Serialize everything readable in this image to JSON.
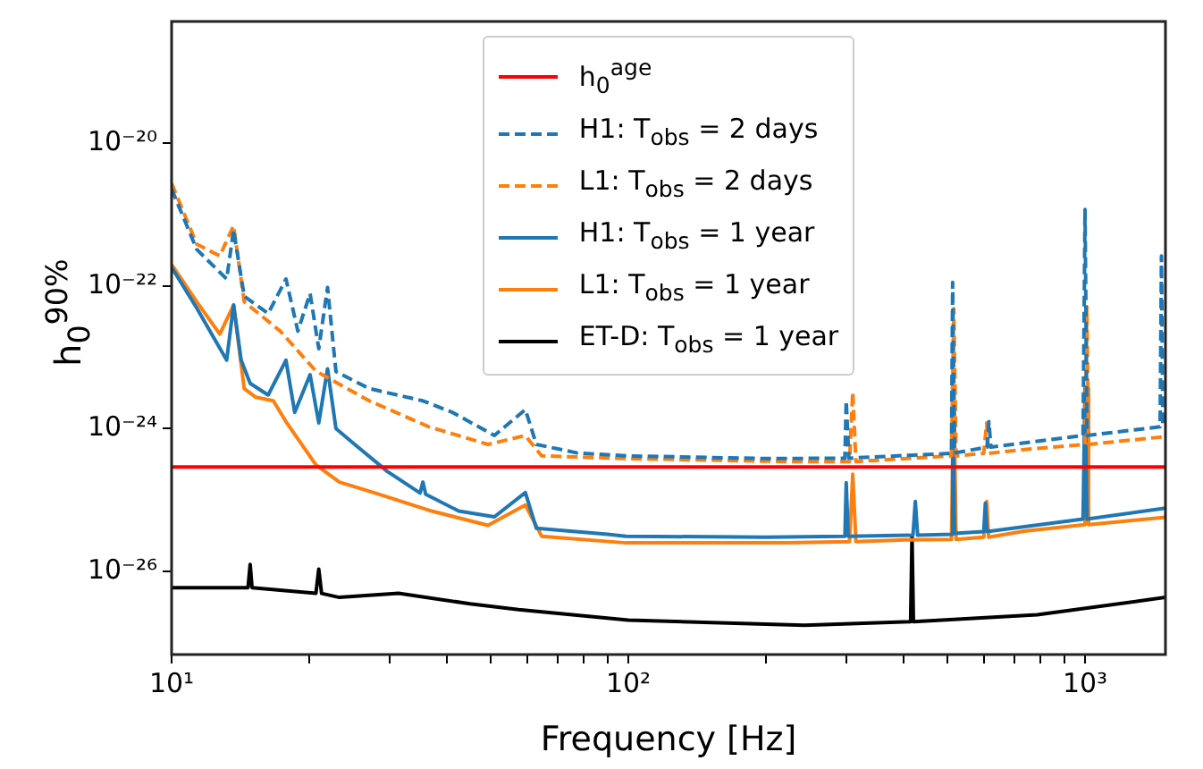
{
  "chart_data": {
    "type": "line",
    "xlabel": "Frequency [Hz]",
    "ylabel": "h$_{0}$$^{90%}$",
    "log": "xy",
    "legend": "top",
    "line_style": "solid",
    "xlim": [
      10,
      1500
    ],
    "ylim": [
      6.8e-28,
      5.1e-19
    ],
    "xticks": [
      {
        "value": 10,
        "label": "10¹"
      },
      {
        "value": 20,
        "label": null
      },
      {
        "value": 30,
        "label": null
      },
      {
        "value": 40,
        "label": null
      },
      {
        "value": 50,
        "label": null
      },
      {
        "value": 60,
        "label": null
      },
      {
        "value": 70,
        "label": null
      },
      {
        "value": 80,
        "label": null
      },
      {
        "value": 90,
        "label": null
      },
      {
        "value": 100,
        "label": "10²"
      },
      {
        "value": 200,
        "label": null
      },
      {
        "value": 300,
        "label": null
      },
      {
        "value": 400,
        "label": null
      },
      {
        "value": 500,
        "label": null
      },
      {
        "value": 600,
        "label": null
      },
      {
        "value": 700,
        "label": null
      },
      {
        "value": 800,
        "label": null
      },
      {
        "value": 900,
        "label": null
      },
      {
        "value": 1000,
        "label": "10³"
      }
    ],
    "yticks": [
      {
        "value": 1e-26,
        "label": "10⁻²⁶"
      },
      {
        "value": 1e-24,
        "label": "10⁻²⁴"
      },
      {
        "value": 1e-22,
        "label": "10⁻²²"
      },
      {
        "value": 1e-20,
        "label": "10⁻²⁰"
      }
    ],
    "series": [
      {
        "name": "h$_{0}$$^{age}$",
        "color": "#ff0000",
        "x": [
          10,
          1500
        ],
        "values": [
          2.9e-25,
          2.9e-25
        ]
      },
      {
        "name": "H1: T$_{obs}$ = 2 days",
        "color": "#1f77b4",
        "line_style": "dashed",
        "x": [
          10,
          11.35,
          13.2,
          13.67,
          14.42,
          16.27,
          17.8,
          18.9,
          20.1,
          21.0,
          21.95,
          22.9,
          27.1,
          35.5,
          41.2,
          50.9,
          59.5,
          62.9,
          77.4,
          98.9,
          200,
          298,
          300,
          304,
          510,
          513,
          518,
          610,
          616,
          622,
          990,
          1000,
          1010,
          1460,
          1470,
          1480,
          1500
        ],
        "values": [
          2.29e-21,
          3.25e-22,
          1.25e-22,
          6.1e-22,
          7.15e-23,
          4.1e-23,
          1.25e-22,
          2.32e-23,
          7.85e-23,
          1.32e-23,
          9.5e-23,
          6.3e-24,
          3.64e-24,
          2.45e-24,
          1.69e-24,
          8e-25,
          1.85e-24,
          6e-25,
          4.55e-25,
          4.15e-25,
          3.8e-25,
          3.85e-25,
          2.45e-24,
          3.85e-25,
          4.5e-25,
          1.12e-22,
          4.55e-25,
          5.5e-25,
          1.25e-24,
          5.5e-25,
          8e-25,
          1.18e-21,
          8e-25,
          1.06e-24,
          2.64e-22,
          1.1e-24,
          1.1e-24
        ]
      },
      {
        "name": "L1: T$_{obs}$ = 2 days",
        "color": "#ff7f0e",
        "line_style": "dashed",
        "x": [
          10,
          11.35,
          12.75,
          13.67,
          14.42,
          17.3,
          20.7,
          27.1,
          36.6,
          49.3,
          59.5,
          64.6,
          98.9,
          222,
          305,
          310,
          315,
          510,
          516,
          522,
          600,
          609,
          615,
          736,
          1000,
          1009,
          1018,
          1490,
          1500
        ],
        "values": [
          2.75e-21,
          3.85e-22,
          2.64e-22,
          7e-22,
          6e-23,
          2.32e-23,
          6.4e-24,
          2.45e-24,
          1.06e-24,
          6e-25,
          8e-25,
          4.15e-25,
          3.8e-25,
          3.45e-25,
          3.45e-25,
          3.25e-24,
          3.45e-25,
          4.15e-25,
          4.8e-23,
          4.15e-25,
          4.5e-25,
          1.2e-24,
          4.5e-25,
          5.1e-25,
          6e-25,
          5.1e-23,
          6e-25,
          7.7e-25,
          7.8e-25
        ]
      },
      {
        "name": "H1: T$_{obs}$ = 1 year",
        "color": "#1f77b4",
        "x": [
          10,
          11.35,
          13.2,
          13.67,
          14.2,
          14.86,
          16.27,
          17.8,
          18.6,
          20.1,
          21.0,
          21.95,
          22.9,
          24.8,
          29.7,
          35,
          35.5,
          36,
          42.5,
          50.9,
          59.5,
          62.9,
          90,
          98.9,
          200,
          298,
          300,
          303,
          420,
          425,
          430,
          510,
          513,
          518,
          600,
          605,
          610,
          990,
          1000,
          1010,
          1465,
          1500
        ],
        "values": [
          1.82e-22,
          4.9e-23,
          9.1e-24,
          5.4e-23,
          9.1e-24,
          4.3e-24,
          2.96e-24,
          9.1e-24,
          1.69e-24,
          5.7e-24,
          1.2e-24,
          6.9e-24,
          1e-24,
          6.5e-25,
          2.5e-25,
          1.25e-25,
          1.78e-25,
          1.2e-25,
          7e-26,
          5.8e-26,
          1.27e-25,
          4e-26,
          3.3e-26,
          3.1e-26,
          3e-26,
          3.1e-26,
          1.75e-25,
          3.1e-26,
          3.2e-26,
          9.5e-26,
          3.2e-26,
          3.3e-26,
          3.85e-24,
          3.4e-26,
          3.6e-26,
          9e-26,
          3.6e-26,
          5.4e-26,
          3.8e-24,
          5.4e-26,
          7.5e-26,
          7.7e-26
        ]
      },
      {
        "name": "L1: T$_{obs}$ = 1 year",
        "color": "#ff7f0e",
        "x": [
          10,
          11.35,
          12.75,
          13.67,
          14.42,
          15.3,
          16.7,
          17.8,
          20.7,
          23.3,
          27.9,
          36.6,
          49.3,
          59.5,
          64.6,
          98.9,
          222,
          305,
          310,
          315,
          404,
          510,
          516,
          522,
          600,
          609,
          615,
          736,
          1000,
          1009,
          1018,
          1500
        ],
        "values": [
          2e-22,
          6e-23,
          2.11e-23,
          5.4e-23,
          3.64e-24,
          2.75e-24,
          2.45e-24,
          1.25e-24,
          3.1e-25,
          1.78e-25,
          1.25e-25,
          7.15e-26,
          4.4e-26,
          8.5e-26,
          3.1e-26,
          2.5e-26,
          2.5e-26,
          2.6e-26,
          2.3e-25,
          2.6e-26,
          2.75e-26,
          2.8e-26,
          3.85e-24,
          2.8e-26,
          3e-26,
          9.5e-26,
          3e-26,
          3.65e-26,
          4.5e-26,
          3.64e-24,
          4.5e-26,
          5.7e-26
        ]
      },
      {
        "name": "ET-D: T$_{obs}$ = 1 year",
        "color": "#000000",
        "x": [
          10,
          14.7,
          14.86,
          15.0,
          20.7,
          21.0,
          21.3,
          23.3,
          31.4,
          45,
          57.5,
          100,
          243,
          415,
          418,
          421,
          786,
          1500
        ],
        "values": [
          5.9e-27,
          5.9e-27,
          1.25e-26,
          5.9e-27,
          4.9e-27,
          1.07e-26,
          4.9e-27,
          4.3e-27,
          4.9e-27,
          3.5e-27,
          2.9e-27,
          2.07e-27,
          1.75e-27,
          1.96e-27,
          3.1e-26,
          1.96e-27,
          2.45e-27,
          4.3e-27
        ]
      }
    ]
  }
}
